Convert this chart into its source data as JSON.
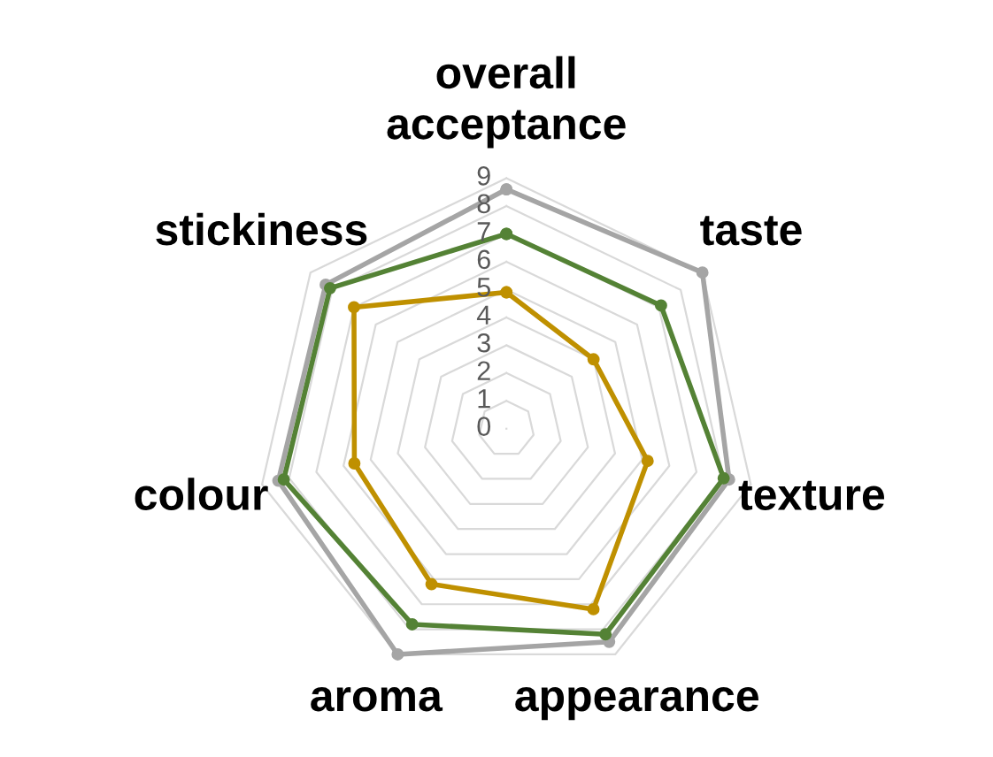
{
  "chart_data": {
    "type": "radar",
    "categories": [
      "overall\nacceptance",
      "taste",
      "texture",
      "appearance",
      "aroma",
      "colour",
      "stickiness"
    ],
    "ylim": [
      0,
      9
    ],
    "yticks": [
      0,
      1,
      2,
      3,
      4,
      5,
      6,
      7,
      8,
      9
    ],
    "grid": true,
    "marker": "circle",
    "series": [
      {
        "color": "#a5a5a5",
        "values": [
          8.6,
          9.0,
          8.2,
          8.5,
          9.0,
          8.4,
          8.3
        ]
      },
      {
        "color": "#548235",
        "values": [
          7.0,
          7.1,
          8.0,
          8.2,
          7.8,
          8.2,
          8.1
        ]
      },
      {
        "color": "#bf9000",
        "values": [
          4.9,
          4.0,
          5.2,
          7.2,
          6.2,
          5.6,
          7.0
        ]
      }
    ]
  }
}
